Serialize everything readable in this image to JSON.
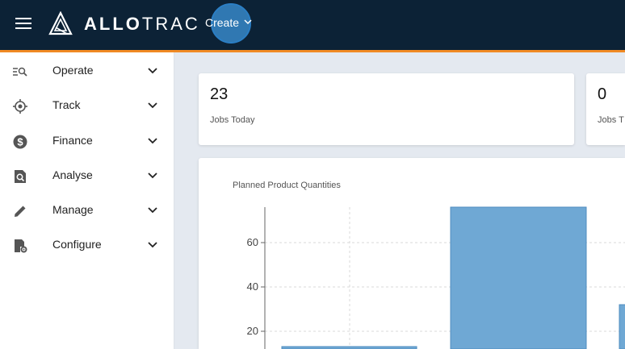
{
  "header": {
    "brand_bold": "ALLO",
    "brand_light": "TRAC",
    "create_label": "Create"
  },
  "sidebar": {
    "items": [
      {
        "label": "Operate",
        "icon": "operate-search-list-icon"
      },
      {
        "label": "Track",
        "icon": "crosshair-icon"
      },
      {
        "label": "Finance",
        "icon": "dollar-icon"
      },
      {
        "label": "Analyse",
        "icon": "document-search-icon"
      },
      {
        "label": "Manage",
        "icon": "pencil-icon"
      },
      {
        "label": "Configure",
        "icon": "document-gear-icon"
      }
    ]
  },
  "stats": [
    {
      "value": "23",
      "label": "Jobs Today"
    },
    {
      "value": "0",
      "label": "Jobs T"
    }
  ],
  "colors": {
    "topbar": "#0c2236",
    "accent": "#f08a24",
    "bar": "#6fa8d4"
  },
  "chart_data": {
    "type": "bar",
    "title": "Planned Product Quantities",
    "y_ticks": [
      20,
      40,
      60
    ],
    "ylim": [
      12,
      76
    ],
    "values": [
      5,
      76,
      32
    ],
    "grid": true
  }
}
